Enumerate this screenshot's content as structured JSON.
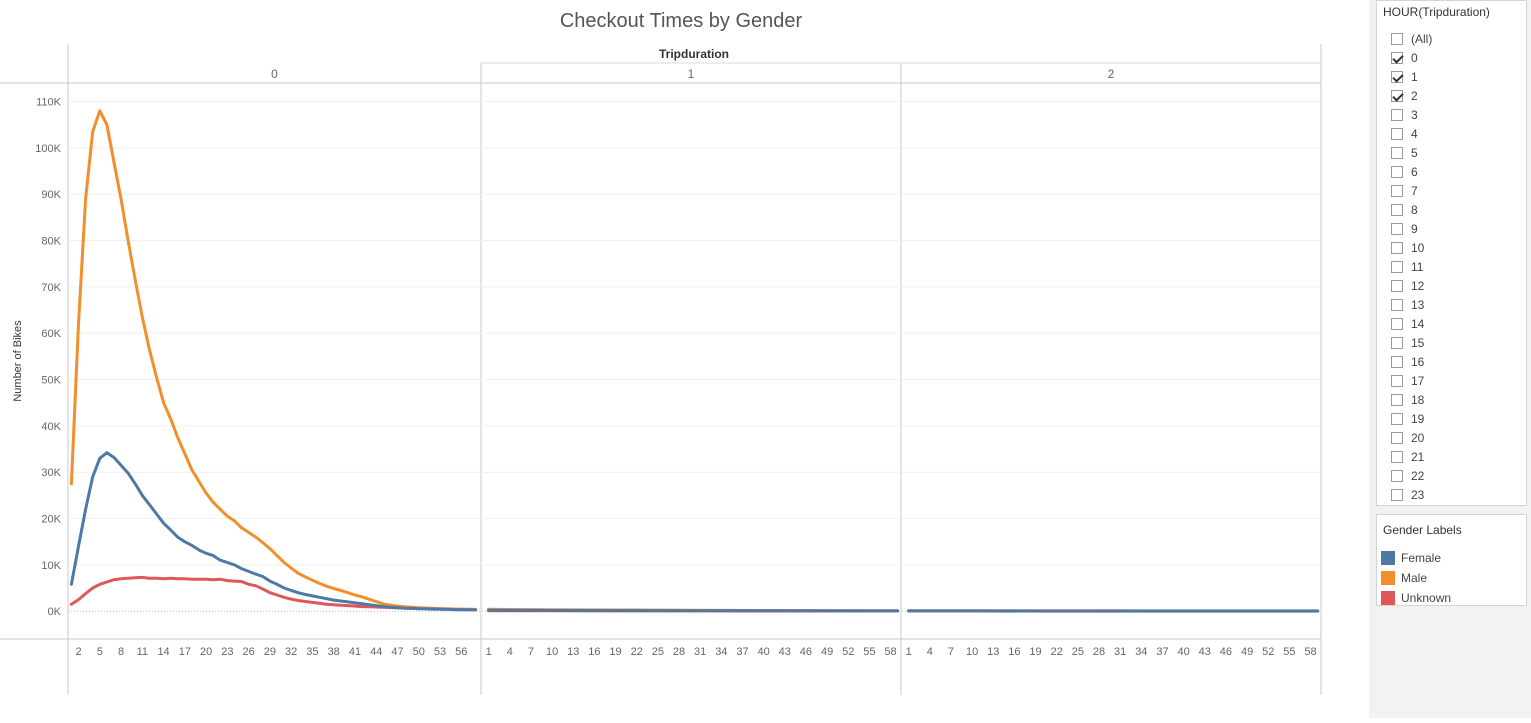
{
  "chart_data": {
    "type": "line",
    "title": "Checkout Times by Gender",
    "column_header": "Tripduration",
    "ylabel": "Number of Bikes",
    "ylim": [
      -6000,
      114000
    ],
    "y_ticks": [
      0,
      10000,
      20000,
      30000,
      40000,
      50000,
      60000,
      70000,
      80000,
      90000,
      100000,
      110000
    ],
    "y_tick_labels": [
      "0K",
      "10K",
      "20K",
      "30K",
      "40K",
      "50K",
      "60K",
      "70K",
      "80K",
      "90K",
      "100K",
      "110K"
    ],
    "grid": true,
    "panes": [
      {
        "label": "0",
        "xlim": [
          0.8,
          58.5
        ],
        "x_tick_labels": [
          "2",
          "5",
          "8",
          "11",
          "14",
          "17",
          "20",
          "23",
          "26",
          "29",
          "32",
          "35",
          "38",
          "41",
          "44",
          "47",
          "50",
          "53",
          "56"
        ],
        "series": [
          {
            "name": "Female",
            "color": "#4e79a7",
            "x": [
              1,
              2,
              3,
              4,
              5,
              6,
              7,
              8,
              9,
              10,
              11,
              12,
              13,
              14,
              15,
              16,
              17,
              18,
              19,
              20,
              21,
              22,
              23,
              24,
              25,
              26,
              27,
              28,
              29,
              30,
              31,
              32,
              33,
              34,
              35,
              36,
              37,
              38,
              39,
              40,
              41,
              42,
              43,
              44,
              45,
              46,
              47,
              48,
              49,
              50,
              51,
              52,
              53,
              54,
              55,
              56,
              57,
              58
            ],
            "y": [
              5800,
              14000,
              22000,
              29000,
              33000,
              34200,
              33200,
              31500,
              29800,
              27500,
              25000,
              23000,
              21000,
              19000,
              17500,
              16000,
              15000,
              14200,
              13200,
              12500,
              12000,
              11000,
              10500,
              10000,
              9200,
              8600,
              8000,
              7500,
              6500,
              5800,
              5000,
              4500,
              4000,
              3600,
              3300,
              3000,
              2700,
              2400,
              2200,
              2000,
              1800,
              1600,
              1400,
              1200,
              1000,
              850,
              750,
              650,
              600,
              550,
              500,
              450,
              420,
              380,
              350,
              320,
              300,
              280
            ]
          },
          {
            "name": "Male",
            "color": "#f28e2b",
            "x": [
              1,
              2,
              3,
              4,
              5,
              6,
              7,
              8,
              9,
              10,
              11,
              12,
              13,
              14,
              15,
              16,
              17,
              18,
              19,
              20,
              21,
              22,
              23,
              24,
              25,
              26,
              27,
              28,
              29,
              30,
              31,
              32,
              33,
              34,
              35,
              36,
              37,
              38,
              39,
              40,
              41,
              42,
              43,
              44,
              45,
              46,
              47,
              48,
              49,
              50,
              51,
              52,
              53,
              54,
              55,
              56,
              57,
              58
            ],
            "y": [
              27500,
              62000,
              89000,
              103500,
              108000,
              105000,
              97000,
              89000,
              80000,
              71500,
              63500,
              56500,
              50500,
              45000,
              41500,
              37500,
              34000,
              30500,
              28000,
              25500,
              23500,
              22000,
              20500,
              19500,
              18000,
              17000,
              16000,
              14800,
              13500,
              12000,
              10500,
              9300,
              8200,
              7400,
              6700,
              6000,
              5400,
              4900,
              4500,
              4000,
              3500,
              3100,
              2600,
              2100,
              1600,
              1300,
              1100,
              950,
              850,
              750,
              680,
              620,
              570,
              520,
              480,
              440,
              410,
              380
            ]
          },
          {
            "name": "Unknown",
            "color": "#e15759",
            "x": [
              1,
              2,
              3,
              4,
              5,
              6,
              7,
              8,
              9,
              10,
              11,
              12,
              13,
              14,
              15,
              16,
              17,
              18,
              19,
              20,
              21,
              22,
              23,
              24,
              25,
              26,
              27,
              28,
              29,
              30,
              31,
              32,
              33,
              34,
              35,
              36,
              37,
              38,
              39,
              40,
              41,
              42,
              43,
              44,
              45,
              46,
              47,
              48,
              49,
              50,
              51,
              52,
              53,
              54,
              55,
              56,
              57,
              58
            ],
            "y": [
              1500,
              2500,
              3800,
              5000,
              5800,
              6300,
              6800,
              7000,
              7100,
              7200,
              7300,
              7100,
              7100,
              7000,
              7100,
              7000,
              7000,
              6900,
              6900,
              6900,
              6800,
              6900,
              6600,
              6500,
              6400,
              5800,
              5500,
              4800,
              4000,
              3500,
              3000,
              2600,
              2300,
              2100,
              1900,
              1700,
              1500,
              1400,
              1300,
              1200,
              1100,
              1000,
              950,
              900,
              850,
              800,
              750,
              700,
              650,
              600,
              560,
              520,
              480,
              450,
              420,
              400,
              380,
              360
            ]
          }
        ]
      },
      {
        "label": "1",
        "xlim": [
          0.2,
          59.2
        ],
        "x_tick_labels": [
          "1",
          "4",
          "7",
          "10",
          "13",
          "16",
          "19",
          "22",
          "25",
          "28",
          "31",
          "34",
          "37",
          "40",
          "43",
          "46",
          "49",
          "52",
          "55",
          "58"
        ],
        "series": [
          {
            "name": "Female",
            "color": "#4e79a7",
            "x": [
              1,
              10,
              20,
              30,
              40,
              50,
              59
            ],
            "y": [
              200,
              150,
              120,
              100,
              80,
              70,
              60
            ]
          },
          {
            "name": "Male",
            "color": "#f28e2b",
            "x": [
              1,
              10,
              20,
              30,
              40,
              50,
              59
            ],
            "y": [
              400,
              300,
              250,
              200,
              160,
              130,
              110
            ]
          },
          {
            "name": "Unknown",
            "color": "#e15759",
            "x": [
              1,
              10,
              20,
              30,
              40,
              50,
              59
            ],
            "y": [
              100,
              80,
              70,
              60,
              50,
              45,
              40
            ]
          }
        ]
      },
      {
        "label": "2",
        "xlim": [
          0.2,
          59.2
        ],
        "x_tick_labels": [
          "1",
          "4",
          "7",
          "10",
          "13",
          "16",
          "19",
          "22",
          "25",
          "28",
          "31",
          "34",
          "37",
          "40",
          "43",
          "46",
          "49",
          "52",
          "55",
          "58"
        ],
        "series": [
          {
            "name": "Female",
            "color": "#4e79a7",
            "x": [
              1,
              10,
              20,
              30,
              40,
              50,
              59
            ],
            "y": [
              60,
              55,
              50,
              45,
              40,
              38,
              35
            ]
          },
          {
            "name": "Male",
            "color": "#f28e2b",
            "x": [
              1,
              10,
              20,
              30,
              40,
              50,
              59
            ],
            "y": [
              110,
              100,
              90,
              80,
              70,
              65,
              60
            ]
          },
          {
            "name": "Unknown",
            "color": "#e15759",
            "x": [
              1,
              10,
              20,
              30,
              40,
              50,
              59
            ],
            "y": [
              40,
              35,
              30,
              28,
              25,
              22,
              20
            ]
          }
        ]
      }
    ]
  },
  "filter": {
    "title": "HOUR(Tripduration)",
    "items": [
      {
        "label": "(All)",
        "checked": false
      },
      {
        "label": "0",
        "checked": true
      },
      {
        "label": "1",
        "checked": true
      },
      {
        "label": "2",
        "checked": true
      },
      {
        "label": "3",
        "checked": false
      },
      {
        "label": "4",
        "checked": false
      },
      {
        "label": "5",
        "checked": false
      },
      {
        "label": "6",
        "checked": false
      },
      {
        "label": "7",
        "checked": false
      },
      {
        "label": "8",
        "checked": false
      },
      {
        "label": "9",
        "checked": false
      },
      {
        "label": "10",
        "checked": false
      },
      {
        "label": "11",
        "checked": false
      },
      {
        "label": "12",
        "checked": false
      },
      {
        "label": "13",
        "checked": false
      },
      {
        "label": "14",
        "checked": false
      },
      {
        "label": "15",
        "checked": false
      },
      {
        "label": "16",
        "checked": false
      },
      {
        "label": "17",
        "checked": false
      },
      {
        "label": "18",
        "checked": false
      },
      {
        "label": "19",
        "checked": false
      },
      {
        "label": "20",
        "checked": false
      },
      {
        "label": "21",
        "checked": false
      },
      {
        "label": "22",
        "checked": false
      },
      {
        "label": "23",
        "checked": false
      }
    ]
  },
  "legend": {
    "title": "Gender Labels",
    "items": [
      {
        "label": "Female",
        "color": "#4e79a7"
      },
      {
        "label": "Male",
        "color": "#f28e2b"
      },
      {
        "label": "Unknown",
        "color": "#e15759"
      }
    ]
  }
}
